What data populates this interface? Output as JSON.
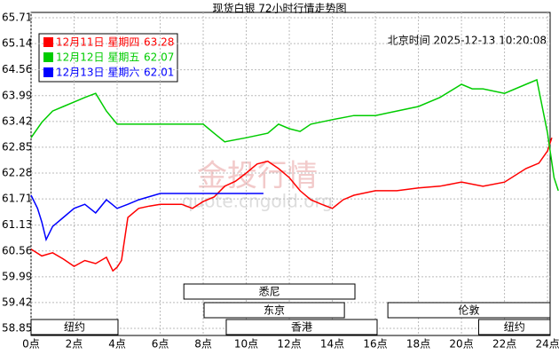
{
  "chart_data": {
    "type": "line",
    "title": "现货白银 72小时行情走势图",
    "timestamp_label": "北京时间 2025-12-13 10:20:08",
    "watermark": [
      "金投行情",
      "quote.cngold.org"
    ],
    "xlim": [
      0,
      24.12
    ],
    "xticks": [
      {
        "value": 0,
        "label": "0点"
      },
      {
        "value": 2,
        "label": "2点"
      },
      {
        "value": 4,
        "label": "4点"
      },
      {
        "value": 6,
        "label": "6点"
      },
      {
        "value": 8,
        "label": "8点"
      },
      {
        "value": 10,
        "label": "10点"
      },
      {
        "value": 12,
        "label": "12点"
      },
      {
        "value": 14,
        "label": "14点"
      },
      {
        "value": 16,
        "label": "16点"
      },
      {
        "value": 18,
        "label": "18点"
      },
      {
        "value": 20,
        "label": "20点"
      },
      {
        "value": 22,
        "label": "22点"
      },
      {
        "value": 24,
        "label": "24点"
      }
    ],
    "ylim": [
      58.85,
      65.71
    ],
    "yticks": [
      58.85,
      59.42,
      59.99,
      60.56,
      61.13,
      61.71,
      62.28,
      62.85,
      63.42,
      63.99,
      64.56,
      65.14,
      65.71
    ],
    "grid": true,
    "series": [
      {
        "name": "12月11日 星期四",
        "last": 63.28,
        "color": "#ff0000",
        "x": [
          0,
          0.5,
          1,
          1.5,
          2,
          2.5,
          3,
          3.5,
          3.8,
          4,
          4.2,
          4.5,
          5,
          5.5,
          6,
          7,
          7.5,
          8,
          8.5,
          9,
          9.5,
          10,
          10.5,
          11,
          11.5,
          12,
          12.5,
          13,
          13.5,
          14,
          14.5,
          15,
          16,
          17,
          18,
          19,
          20,
          21,
          22,
          23,
          23.6,
          24,
          24.2
        ],
        "values": [
          60.6,
          60.45,
          60.52,
          60.38,
          60.22,
          60.35,
          60.28,
          60.42,
          60.12,
          60.2,
          60.35,
          61.3,
          61.5,
          61.55,
          61.59,
          61.59,
          61.5,
          61.65,
          61.75,
          61.99,
          62.1,
          62.28,
          62.48,
          62.54,
          62.38,
          62.18,
          61.89,
          61.69,
          61.59,
          61.5,
          61.69,
          61.79,
          61.89,
          61.89,
          61.95,
          61.99,
          62.08,
          61.99,
          62.08,
          62.38,
          62.5,
          62.77,
          63.06
        ]
      },
      {
        "name": "12月12日 星期五",
        "last": 62.07,
        "color": "#00cc00",
        "x": [
          0,
          0.5,
          1,
          1.5,
          2,
          2.5,
          3,
          3.5,
          4,
          5,
          6,
          7,
          8,
          8.5,
          9,
          10,
          11,
          11.5,
          12,
          12.5,
          13,
          14,
          15,
          16,
          17,
          18,
          19,
          20,
          20.5,
          21,
          22,
          23,
          23.5,
          24,
          24.3,
          24.5
        ],
        "values": [
          63.06,
          63.4,
          63.65,
          63.75,
          63.85,
          63.95,
          64.04,
          63.65,
          63.36,
          63.36,
          63.36,
          63.36,
          63.36,
          63.16,
          62.97,
          63.06,
          63.16,
          63.36,
          63.26,
          63.2,
          63.36,
          63.46,
          63.55,
          63.55,
          63.65,
          63.75,
          63.95,
          64.24,
          64.14,
          64.14,
          64.04,
          64.24,
          64.34,
          63.16,
          62.18,
          61.89
        ]
      },
      {
        "name": "12月13日 星期六",
        "last": 62.01,
        "color": "#0000ff",
        "x": [
          0,
          0.3,
          0.5,
          0.7,
          1,
          1.5,
          2,
          2.5,
          3,
          3.5,
          4,
          4.5,
          5,
          6,
          7,
          8,
          9,
          10,
          10.8
        ],
        "values": [
          61.79,
          61.5,
          61.2,
          60.81,
          61.1,
          61.3,
          61.5,
          61.59,
          61.4,
          61.69,
          61.5,
          61.59,
          61.69,
          61.83,
          61.83,
          61.83,
          61.83,
          61.83,
          61.83
        ]
      }
    ],
    "sessions": [
      {
        "label": "悉尼",
        "start": 7.1,
        "end": 15.05
      },
      {
        "label": "东京",
        "start": 8.04,
        "end": 14.56
      },
      {
        "label": "伦敦",
        "start": 16.58,
        "end": 24.12
      },
      {
        "label": "香港",
        "start": 9.07,
        "end": 16.08
      },
      {
        "label": "纽约",
        "start": 0,
        "end": 4.04
      },
      {
        "label": "纽约",
        "start": 20.8,
        "end": 24.12
      }
    ]
  }
}
